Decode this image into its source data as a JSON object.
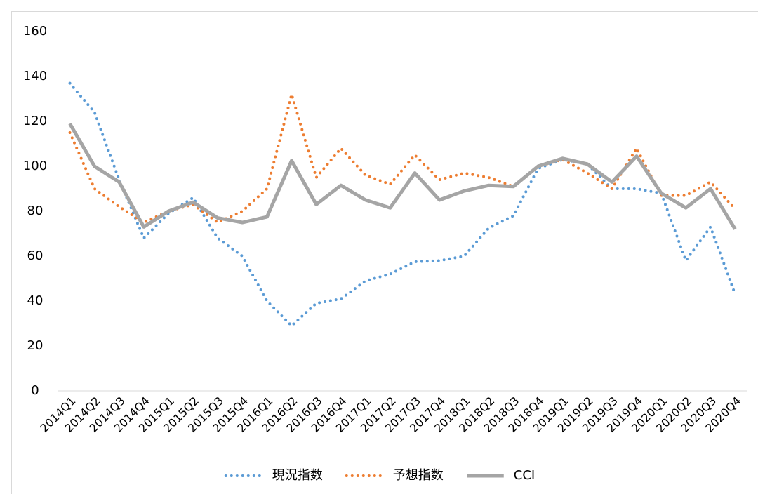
{
  "chart_data": {
    "type": "line",
    "categories": [
      "2014Q1",
      "2014Q2",
      "2014Q3",
      "2014Q4",
      "2015Q1",
      "2015Q2",
      "2015Q3",
      "2015Q4",
      "2016Q1",
      "2016Q2",
      "2016Q3",
      "2016Q4",
      "2017Q1",
      "2017Q2",
      "2017Q3",
      "2017Q4",
      "2018Q1",
      "2018Q2",
      "2018Q3",
      "2018Q4",
      "2019Q1",
      "2019Q2",
      "2019Q3",
      "2019Q4",
      "2020Q1",
      "2020Q2",
      "2020Q3",
      "2020Q4"
    ],
    "series": [
      {
        "name": "現況指数",
        "color": "#5b9bd5",
        "style": "dotted",
        "values": [
          137,
          124,
          94,
          68,
          79,
          86,
          68,
          60,
          40,
          29,
          39,
          41,
          49,
          52,
          57.5,
          58,
          60,
          72.5,
          78,
          99,
          103,
          101,
          90,
          90,
          88,
          58,
          73,
          43
        ]
      },
      {
        "name": "予想指数",
        "color": "#ed7d31",
        "style": "dotted",
        "values": [
          115,
          90,
          82,
          75,
          80,
          83,
          75,
          80,
          90,
          132,
          95,
          108,
          96,
          92,
          105,
          94,
          97,
          95,
          91,
          100,
          103,
          97,
          90,
          108,
          87,
          87,
          93,
          81
        ]
      },
      {
        "name": "CCI",
        "color": "#a5a5a5",
        "style": "solid",
        "values": [
          119,
          100,
          93,
          73,
          80,
          84,
          77,
          75,
          77.5,
          102.5,
          83,
          91.5,
          85,
          81.5,
          97,
          85,
          89,
          91.5,
          91,
          100,
          103.5,
          101,
          93,
          104.5,
          88,
          81.5,
          90,
          72
        ]
      }
    ],
    "ylim": [
      0,
      160
    ],
    "yticks": [
      0,
      20,
      40,
      60,
      80,
      100,
      120,
      140,
      160
    ],
    "grid": false,
    "legend": "bottom"
  }
}
